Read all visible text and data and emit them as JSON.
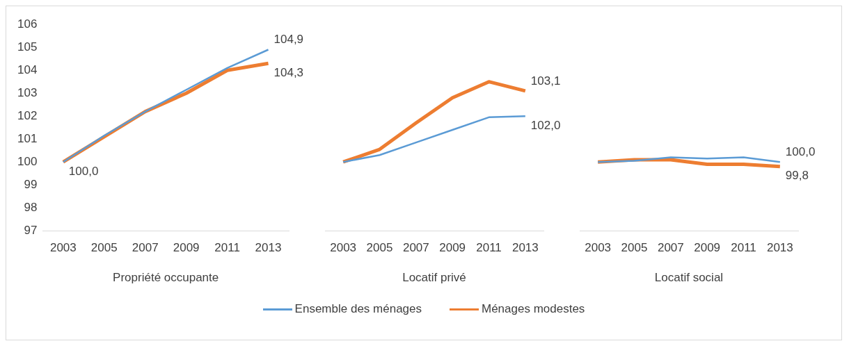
{
  "chart_data": [
    {
      "type": "line",
      "xlabel": "Propriété occupante",
      "categories": [
        "2003",
        "2005",
        "2007",
        "2009",
        "2011",
        "2013"
      ],
      "ylim": [
        97,
        106
      ],
      "yticks": [
        97,
        98,
        99,
        100,
        101,
        102,
        103,
        104,
        105,
        106
      ],
      "grid": false,
      "legend": "bottom",
      "series": [
        {
          "name": "Ensemble des ménages",
          "color": "#5b9bd5",
          "values": [
            100.0,
            101.15,
            102.2,
            103.15,
            104.1,
            104.9
          ],
          "value_labels": [
            null,
            null,
            null,
            null,
            null,
            "104,9"
          ]
        },
        {
          "name": "Ménages modestes",
          "color": "#ed7d31",
          "values": [
            100.0,
            101.1,
            102.2,
            103.0,
            104.0,
            104.3
          ],
          "value_labels": [
            "100,0",
            null,
            null,
            null,
            null,
            "104,3"
          ]
        }
      ]
    },
    {
      "type": "line",
      "xlabel": "Locatif privé",
      "categories": [
        "2003",
        "2005",
        "2007",
        "2009",
        "2011",
        "2013"
      ],
      "ylim": [
        97,
        106
      ],
      "tick_labels": "x",
      "grid": false,
      "series": [
        {
          "color": "#5b9bd5",
          "values": [
            100.0,
            100.3,
            100.85,
            101.4,
            101.95,
            102.0
          ],
          "value_labels": [
            null,
            null,
            null,
            null,
            null,
            "102,0"
          ]
        },
        {
          "color": "#ed7d31",
          "values": [
            100.0,
            100.55,
            101.7,
            102.8,
            103.5,
            103.1
          ],
          "value_labels": [
            null,
            null,
            null,
            null,
            null,
            "103,1"
          ]
        }
      ]
    },
    {
      "type": "line",
      "xlabel": "Locatif social",
      "categories": [
        "2003",
        "2005",
        "2007",
        "2009",
        "2011",
        "2013"
      ],
      "ylim": [
        97,
        106
      ],
      "tick_labels": "x",
      "grid": false,
      "series": [
        {
          "color": "#5b9bd5",
          "values": [
            100.0,
            100.05,
            100.2,
            100.15,
            100.2,
            100.0
          ],
          "value_labels": [
            null,
            null,
            null,
            null,
            null,
            "100,0"
          ]
        },
        {
          "color": "#ed7d31",
          "values": [
            100.0,
            100.1,
            100.1,
            99.9,
            99.9,
            99.8
          ],
          "value_labels": [
            null,
            null,
            null,
            null,
            null,
            "99,8"
          ]
        }
      ]
    }
  ]
}
